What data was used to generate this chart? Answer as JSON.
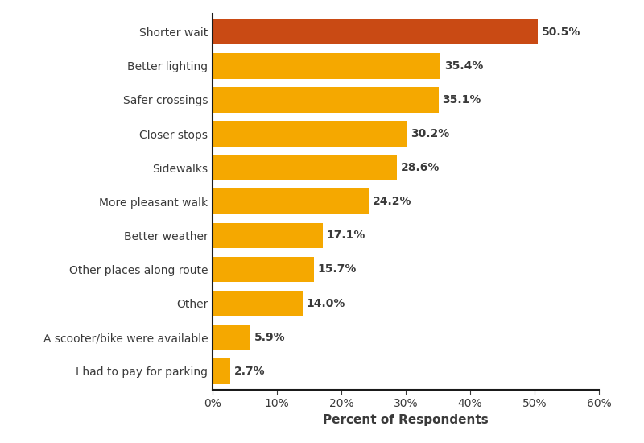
{
  "categories": [
    "I had to pay for parking",
    "A scooter/bike were available",
    "Other",
    "Other places along route",
    "Better weather",
    "More pleasant walk",
    "Sidewalks",
    "Closer stops",
    "Safer crossings",
    "Better lighting",
    "Shorter wait"
  ],
  "values": [
    2.7,
    5.9,
    14.0,
    15.7,
    17.1,
    24.2,
    28.6,
    30.2,
    35.1,
    35.4,
    50.5
  ],
  "bar_colors": [
    "#F5A800",
    "#F5A800",
    "#F5A800",
    "#F5A800",
    "#F5A800",
    "#F5A800",
    "#F5A800",
    "#F5A800",
    "#F5A800",
    "#F5A800",
    "#C94A14"
  ],
  "xlabel": "Percent of Respondents",
  "xlim": [
    0,
    60
  ],
  "xticks": [
    0,
    10,
    20,
    30,
    40,
    50,
    60
  ],
  "xtick_labels": [
    "0%",
    "10%",
    "20%",
    "30%",
    "40%",
    "50%",
    "60%"
  ],
  "label_color": "#3a3a3a",
  "background_color": "#FFFFFF",
  "bar_height": 0.75,
  "xlabel_fontsize": 11,
  "tick_fontsize": 10,
  "label_fontsize": 10,
  "value_fontsize": 10
}
